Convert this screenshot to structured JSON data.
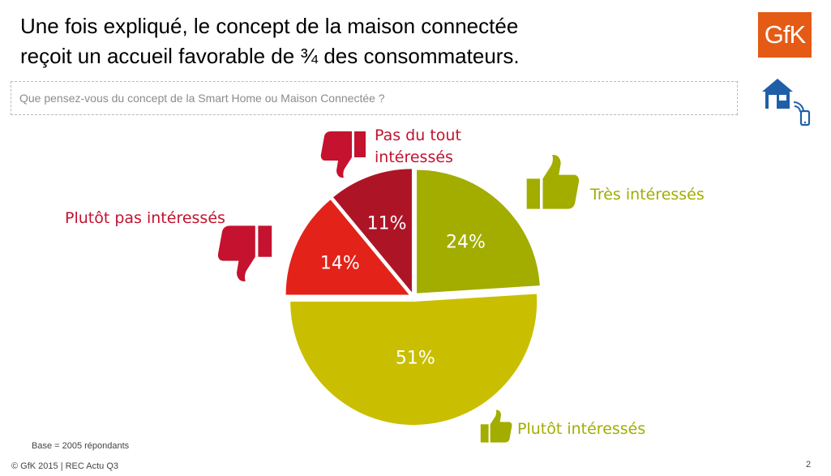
{
  "header": {
    "title_line1": "Une fois expliqué, le concept de la maison connectée",
    "title_line2": "reçoit un accueil favorable de ¾ des consommateurs.",
    "question": "Que pensez-vous du concept de la Smart Home ou Maison Connectée ?",
    "logo_text": "GfK"
  },
  "chart_data": {
    "type": "pie",
    "title": "",
    "slices": [
      {
        "label": "Très intéressés",
        "value": 24,
        "display": "24%",
        "color": "#a2ad00"
      },
      {
        "label": "Plutôt intéressés",
        "value": 51,
        "display": "51%",
        "color": "#c9bf00"
      },
      {
        "label": "Plutôt pas intéressés",
        "value": 14,
        "display": "14%",
        "color": "#e32219"
      },
      {
        "label": "Pas du tout intéressés",
        "value": 11,
        "display": "11%",
        "color": "#ad1526"
      }
    ]
  },
  "label_colors": {
    "positive": "#a2ad00",
    "negative": "#c4122f"
  },
  "icons": {
    "positive": "thumbs-up-icon",
    "negative": "thumbs-down-icon",
    "house": "smart-home-icon"
  },
  "footer": {
    "base": "Base = 2005 répondants",
    "copyright": "© GfK 2015 | REC Actu Q3",
    "page": "2"
  }
}
